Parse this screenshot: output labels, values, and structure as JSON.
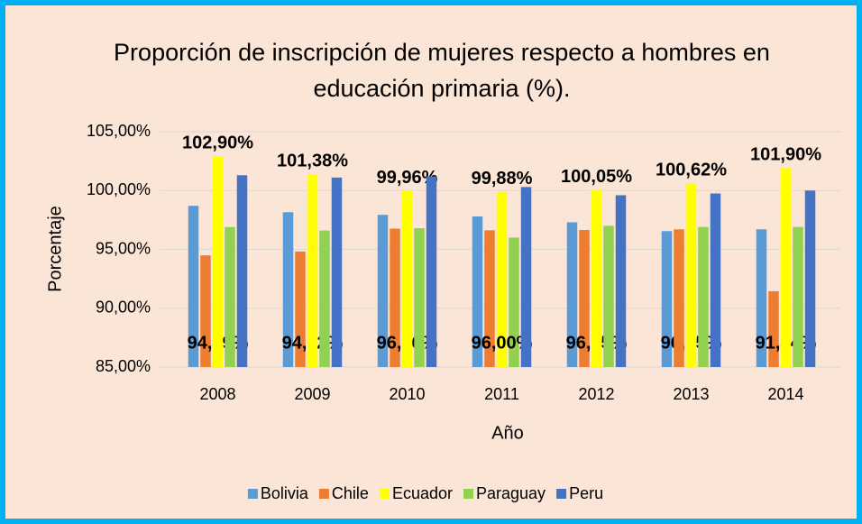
{
  "chart_data": {
    "type": "bar",
    "title": "Proporción de inscripción de mujeres respecto a hombres en educación primaria (%).",
    "x_label": "Año",
    "y_label": "Porcentaje",
    "categories": [
      "2008",
      "2009",
      "2010",
      "2011",
      "2012",
      "2013",
      "2014"
    ],
    "series": [
      {
        "name": "Bolivia",
        "color": "#5b9bd5",
        "values": [
          98.7,
          98.16,
          97.93,
          97.8,
          97.3,
          96.55,
          96.7
        ],
        "value_labels": [
          null,
          null,
          null,
          null,
          null,
          "96,55%",
          null
        ]
      },
      {
        "name": "Chile",
        "color": "#ed7d31",
        "values": [
          94.49,
          94.82,
          96.76,
          96.62,
          96.65,
          96.7,
          91.44
        ],
        "value_labels": [
          "94,49%",
          "94,82%",
          "96,76%",
          null,
          "96,65%",
          null,
          "91,44%"
        ]
      },
      {
        "name": "Ecuador",
        "color": "#ffff00",
        "values": [
          102.9,
          101.38,
          99.96,
          99.88,
          100.05,
          100.62,
          101.9
        ],
        "value_labels": [
          "102,90%",
          "101,38%",
          "99,96%",
          "99,88%",
          "100,05%",
          "100,62%",
          "101,90%"
        ]
      },
      {
        "name": "Paraguay",
        "color": "#92d050",
        "values": [
          96.9,
          96.6,
          96.8,
          96.0,
          97.0,
          96.9,
          96.9
        ],
        "value_labels": [
          null,
          null,
          null,
          "96,00%",
          null,
          null,
          null
        ]
      },
      {
        "name": "Peru",
        "color": "#4472c4",
        "values": [
          101.3,
          101.1,
          101.2,
          100.3,
          99.6,
          99.75,
          100.0
        ],
        "value_labels": [
          null,
          null,
          null,
          null,
          null,
          null,
          null
        ]
      }
    ],
    "ylim": [
      85,
      105
    ],
    "yticks": [
      {
        "value": 85,
        "label": "85,00%"
      },
      {
        "value": 90,
        "label": "90,00%"
      },
      {
        "value": 95,
        "label": "95,00%"
      },
      {
        "value": 100,
        "label": "100,00%"
      },
      {
        "value": 105,
        "label": "105,00%"
      }
    ],
    "grid": true,
    "legend": "bottom",
    "background": "#fbe5d6",
    "border_color": "#00b0f0"
  }
}
